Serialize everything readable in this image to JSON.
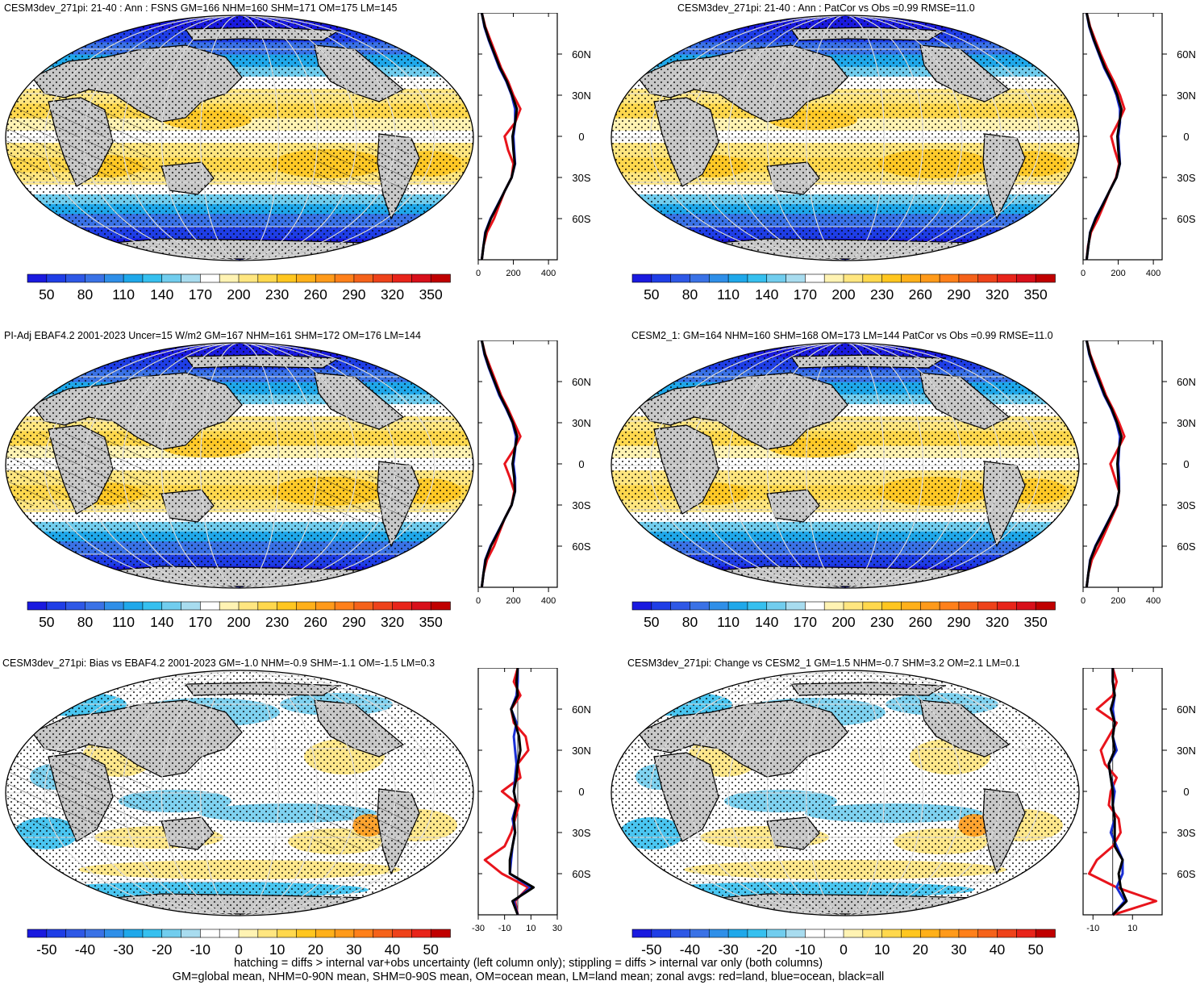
{
  "footer": {
    "line1": "hatching = diffs > internal var+obs uncertainty (left column only); stippling = diffs > internal var only (both columns)",
    "line2": "GM=global mean, NHM=0-90N mean, SHM=0-90S mean, OM=ocean mean, LM=land mean; zonal avgs: red=land, blue=ocean, black=all"
  },
  "colors": {
    "land_zonal": "#e8141c",
    "ocean_zonal": "#1a2fd6",
    "all_zonal": "#000000",
    "land_mask": "#c8c8c8"
  },
  "lat_ticks": [
    "60N",
    "30N",
    "0",
    "30S",
    "60S"
  ],
  "unit_label": "W m⁻²",
  "chart_data": [
    {
      "type": "heatmap",
      "title": "CESM3dev_271pi: 21-40 : Ann : FSNS GM=166 NHM=160 SHM=171 OM=175 LM=145",
      "kind": "abs",
      "hatching": true,
      "colorbar_ticks": [
        "50",
        "80",
        "110",
        "140",
        "170",
        "200",
        "230",
        "260",
        "290",
        "320",
        "350"
      ],
      "colorbar_colors": [
        "#1a1adf",
        "#1f3ee6",
        "#2e58e6",
        "#3a72e6",
        "#2f8fe8",
        "#1fa8ea",
        "#36c0ef",
        "#71cdee",
        "#a8dcef",
        "#ffffff",
        "#fff3b3",
        "#ffe680",
        "#ffd84d",
        "#ffc61f",
        "#ffb01a",
        "#ff9a1a",
        "#ff801a",
        "#f5621a",
        "#ee421a",
        "#e8241a",
        "#d80f1a",
        "#c00000"
      ],
      "zonal_xticks": [
        "0",
        "200",
        "400"
      ],
      "zonal_xlim": [
        0,
        450
      ],
      "zonal_lat": [
        -90,
        -80,
        -70,
        -60,
        -50,
        -40,
        -30,
        -20,
        -10,
        0,
        10,
        20,
        30,
        40,
        50,
        60,
        70,
        80,
        90
      ],
      "series": [
        {
          "name": "land",
          "values": [
            20,
            30,
            50,
            90,
            120,
            150,
            190,
            200,
            170,
            150,
            210,
            240,
            200,
            170,
            130,
            100,
            70,
            40,
            20
          ]
        },
        {
          "name": "ocean",
          "values": [
            20,
            30,
            40,
            70,
            110,
            150,
            190,
            210,
            205,
            200,
            210,
            210,
            190,
            160,
            120,
            90,
            60,
            35,
            20
          ]
        },
        {
          "name": "all",
          "values": [
            20,
            30,
            42,
            72,
            112,
            150,
            190,
            208,
            200,
            195,
            210,
            220,
            193,
            163,
            124,
            93,
            63,
            37,
            20
          ]
        }
      ]
    },
    {
      "type": "heatmap",
      "title": "CESM3dev_271pi: 21-40 : Ann : PatCor vs Obs =0.99 RMSE=11.0",
      "kind": "abs",
      "hatching": false,
      "colorbar_ticks": [
        "50",
        "80",
        "110",
        "140",
        "170",
        "200",
        "230",
        "260",
        "290",
        "320",
        "350"
      ],
      "colorbar_colors": [
        "#1a1adf",
        "#1f3ee6",
        "#2e58e6",
        "#3a72e6",
        "#2f8fe8",
        "#1fa8ea",
        "#36c0ef",
        "#71cdee",
        "#a8dcef",
        "#ffffff",
        "#fff3b3",
        "#ffe680",
        "#ffd84d",
        "#ffc61f",
        "#ffb01a",
        "#ff9a1a",
        "#ff801a",
        "#f5621a",
        "#ee421a",
        "#e8241a",
        "#d80f1a",
        "#c00000"
      ],
      "zonal_xticks": [
        "0",
        "200",
        "400"
      ],
      "zonal_xlim": [
        0,
        450
      ],
      "zonal_lat": [
        -90,
        -80,
        -70,
        -60,
        -50,
        -40,
        -30,
        -20,
        -10,
        0,
        10,
        20,
        30,
        40,
        50,
        60,
        70,
        80,
        90
      ],
      "series": [
        {
          "name": "land",
          "values": [
            20,
            28,
            45,
            85,
            118,
            150,
            188,
            205,
            180,
            160,
            200,
            235,
            210,
            175,
            135,
            100,
            70,
            40,
            20
          ]
        },
        {
          "name": "ocean",
          "values": [
            20,
            30,
            40,
            70,
            110,
            150,
            190,
            210,
            205,
            200,
            210,
            210,
            190,
            160,
            120,
            90,
            60,
            35,
            20
          ]
        },
        {
          "name": "all",
          "values": [
            20,
            30,
            41,
            72,
            112,
            150,
            190,
            209,
            200,
            195,
            207,
            218,
            195,
            164,
            125,
            93,
            63,
            37,
            20
          ]
        }
      ]
    },
    {
      "type": "heatmap",
      "title": "PI-Adj EBAF4.2 2001-2023 Uncer=15 W/m2 GM=167 NHM=161 SHM=172 OM=176 LM=144",
      "kind": "abs",
      "hatching": true,
      "colorbar_ticks": [
        "50",
        "80",
        "110",
        "140",
        "170",
        "200",
        "230",
        "260",
        "290",
        "320",
        "350"
      ],
      "colorbar_colors": [
        "#1a1adf",
        "#1f3ee6",
        "#2e58e6",
        "#3a72e6",
        "#2f8fe8",
        "#1fa8ea",
        "#36c0ef",
        "#71cdee",
        "#a8dcef",
        "#ffffff",
        "#fff3b3",
        "#ffe680",
        "#ffd84d",
        "#ffc61f",
        "#ffb01a",
        "#ff9a1a",
        "#ff801a",
        "#f5621a",
        "#ee421a",
        "#e8241a",
        "#d80f1a",
        "#c00000"
      ],
      "zonal_xticks": [
        "0",
        "200",
        "400"
      ],
      "zonal_xlim": [
        0,
        450
      ],
      "zonal_lat": [
        -90,
        -80,
        -70,
        -60,
        -50,
        -40,
        -30,
        -20,
        -10,
        0,
        10,
        20,
        30,
        40,
        50,
        60,
        70,
        80,
        90
      ],
      "series": [
        {
          "name": "land",
          "values": [
            20,
            30,
            50,
            90,
            120,
            150,
            190,
            205,
            180,
            150,
            200,
            240,
            205,
            170,
            130,
            100,
            70,
            40,
            20
          ]
        },
        {
          "name": "ocean",
          "values": [
            20,
            30,
            40,
            70,
            110,
            150,
            190,
            210,
            210,
            200,
            210,
            215,
            195,
            160,
            120,
            90,
            60,
            35,
            20
          ]
        },
        {
          "name": "all",
          "values": [
            20,
            30,
            42,
            72,
            112,
            150,
            190,
            209,
            205,
            195,
            207,
            222,
            197,
            163,
            124,
            93,
            63,
            37,
            20
          ]
        }
      ]
    },
    {
      "type": "heatmap",
      "title": "CESM2_1: GM=164 NHM=160 SHM=168 OM=173 LM=144 PatCor vs Obs =0.99 RMSE=11.0",
      "kind": "abs",
      "hatching": false,
      "colorbar_ticks": [
        "50",
        "80",
        "110",
        "140",
        "170",
        "200",
        "230",
        "260",
        "290",
        "320",
        "350"
      ],
      "colorbar_colors": [
        "#1a1adf",
        "#1f3ee6",
        "#2e58e6",
        "#3a72e6",
        "#2f8fe8",
        "#1fa8ea",
        "#36c0ef",
        "#71cdee",
        "#a8dcef",
        "#ffffff",
        "#fff3b3",
        "#ffe680",
        "#ffd84d",
        "#ffc61f",
        "#ffb01a",
        "#ff9a1a",
        "#ff801a",
        "#f5621a",
        "#ee421a",
        "#e8241a",
        "#d80f1a",
        "#c00000"
      ],
      "zonal_xticks": [
        "0",
        "200",
        "400"
      ],
      "zonal_xlim": [
        0,
        450
      ],
      "zonal_lat": [
        -90,
        -80,
        -70,
        -60,
        -50,
        -40,
        -30,
        -20,
        -10,
        0,
        10,
        20,
        30,
        40,
        50,
        60,
        70,
        80,
        90
      ],
      "series": [
        {
          "name": "land",
          "values": [
            20,
            30,
            50,
            90,
            125,
            160,
            195,
            205,
            180,
            155,
            195,
            235,
            205,
            170,
            130,
            100,
            70,
            40,
            20
          ]
        },
        {
          "name": "ocean",
          "values": [
            20,
            30,
            40,
            70,
            110,
            150,
            190,
            205,
            205,
            200,
            205,
            210,
            190,
            160,
            120,
            90,
            60,
            35,
            20
          ]
        },
        {
          "name": "all",
          "values": [
            20,
            30,
            42,
            72,
            113,
            152,
            191,
            205,
            200,
            195,
            202,
            218,
            194,
            163,
            124,
            93,
            63,
            37,
            20
          ]
        }
      ]
    },
    {
      "type": "heatmap",
      "title": "CESM3dev_271pi: Bias vs EBAF4.2 2001-2023 GM=-1.0 NHM=-0.9 SHM=-1.1 OM=-1.5 LM=0.3",
      "kind": "diff",
      "hatching": true,
      "colorbar_ticks": [
        "-50",
        "-40",
        "-30",
        "-20",
        "-10",
        "0",
        "10",
        "20",
        "30",
        "40",
        "50"
      ],
      "colorbar_colors": [
        "#1a1adf",
        "#1f3ee6",
        "#2e58e6",
        "#3a72e6",
        "#2f8fe8",
        "#1fa8ea",
        "#36c0ef",
        "#71cdee",
        "#a8dcef",
        "#ffffff",
        "#ffffff",
        "#fff3b3",
        "#ffe680",
        "#ffd84d",
        "#ffc61f",
        "#ffb01a",
        "#ff9a1a",
        "#ff801a",
        "#f5621a",
        "#ee421a",
        "#e8241a",
        "#c00000"
      ],
      "zonal_xticks": [
        "-30",
        "-10",
        "10",
        "30"
      ],
      "zonal_xlim": [
        -30,
        30
      ],
      "zonal_lat": [
        -90,
        -80,
        -70,
        -60,
        -50,
        -40,
        -30,
        -20,
        -10,
        0,
        10,
        20,
        30,
        40,
        50,
        60,
        70,
        80,
        90
      ],
      "series": [
        {
          "name": "land",
          "values": [
            0,
            -2,
            8,
            -12,
            -25,
            -10,
            -5,
            -2,
            1,
            -12,
            2,
            0,
            8,
            6,
            -3,
            -5,
            2,
            -3,
            0
          ]
        },
        {
          "name": "ocean",
          "values": [
            0,
            -3,
            10,
            -6,
            -5,
            -4,
            -2,
            -4,
            -1,
            -3,
            -2,
            -1,
            -2,
            -3,
            -1,
            -5,
            -1,
            0,
            0
          ]
        },
        {
          "name": "all",
          "values": [
            0,
            -4,
            12,
            -6,
            -6,
            -4,
            -2,
            -3,
            -1,
            -3,
            -1,
            0,
            2,
            1,
            -2,
            -5,
            0,
            -1,
            0
          ]
        }
      ]
    },
    {
      "type": "heatmap",
      "title": "CESM3dev_271pi: Change vs CESM2_1 GM=1.5 NHM=-0.7 SHM=3.2 OM=2.1 LM=0.1",
      "kind": "diff",
      "hatching": false,
      "colorbar_ticks": [
        "-50",
        "-40",
        "-30",
        "-20",
        "-10",
        "0",
        "10",
        "20",
        "30",
        "40",
        "50"
      ],
      "colorbar_colors": [
        "#1a1adf",
        "#1f3ee6",
        "#2e58e6",
        "#3a72e6",
        "#2f8fe8",
        "#1fa8ea",
        "#36c0ef",
        "#71cdee",
        "#a8dcef",
        "#ffffff",
        "#ffffff",
        "#fff3b3",
        "#ffe680",
        "#ffd84d",
        "#ffc61f",
        "#ffb01a",
        "#ff9a1a",
        "#ff801a",
        "#f5621a",
        "#ee421a",
        "#e8241a",
        "#c00000"
      ],
      "zonal_xticks": [
        "-10",
        "10"
      ],
      "zonal_xlim": [
        -15,
        25
      ],
      "zonal_lat": [
        -90,
        -80,
        -70,
        -60,
        -50,
        -40,
        -30,
        -20,
        -10,
        0,
        10,
        20,
        30,
        40,
        50,
        60,
        70,
        80,
        90
      ],
      "series": [
        {
          "name": "land",
          "values": [
            0,
            22,
            2,
            -12,
            -8,
            0,
            4,
            3,
            -2,
            -1,
            2,
            -4,
            -6,
            -2,
            2,
            -8,
            0,
            2,
            0
          ]
        },
        {
          "name": "ocean",
          "values": [
            0,
            6,
            2,
            5,
            5,
            2,
            -1,
            1,
            0,
            1,
            -1,
            -2,
            2,
            0,
            1,
            0,
            1,
            0,
            0
          ]
        },
        {
          "name": "all",
          "values": [
            0,
            7,
            4,
            3,
            5,
            1,
            1,
            1,
            0,
            0,
            -1,
            -2,
            1,
            0,
            1,
            -1,
            1,
            0,
            0
          ]
        }
      ]
    }
  ]
}
